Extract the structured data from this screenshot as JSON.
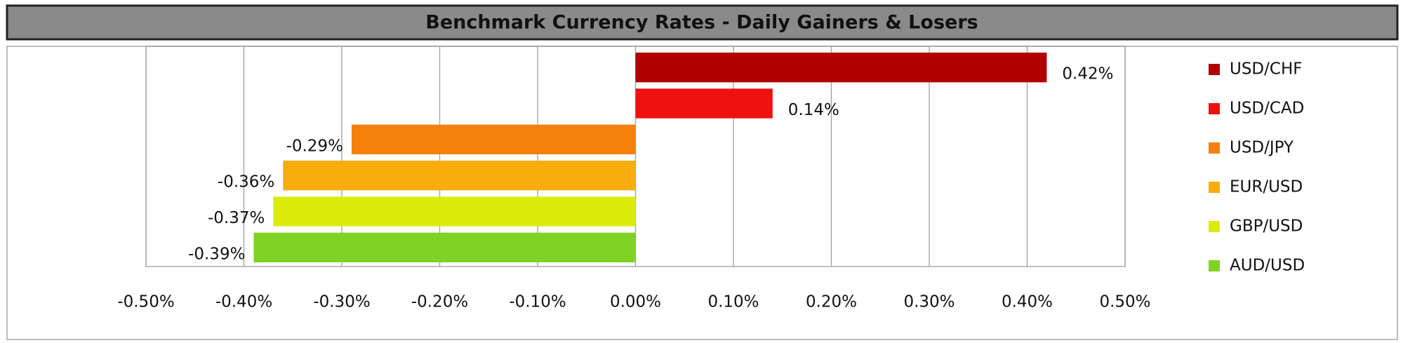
{
  "chart_data": {
    "type": "bar",
    "orientation": "horizontal",
    "title": "Benchmark Currency Rates - Daily Gainers & Losers",
    "categories": [
      "USD/CHF",
      "USD/CAD",
      "USD/JPY",
      "EUR/USD",
      "GBP/USD",
      "AUD/USD"
    ],
    "values": [
      0.42,
      0.14,
      -0.29,
      -0.36,
      -0.37,
      -0.39
    ],
    "value_labels": [
      "0.42%",
      "0.14%",
      "-0.29%",
      "-0.36%",
      "-0.37%",
      "-0.39%"
    ],
    "colors": [
      "#b00000",
      "#f01010",
      "#f5800a",
      "#f8ac0e",
      "#dcec0a",
      "#7fd324"
    ],
    "xlim": [
      -0.5,
      0.5
    ],
    "xticks": [
      {
        "value": -0.5,
        "label": "-0.50%"
      },
      {
        "value": -0.4,
        "label": "-0.40%"
      },
      {
        "value": -0.3,
        "label": "-0.30%"
      },
      {
        "value": -0.2,
        "label": "-0.20%"
      },
      {
        "value": -0.1,
        "label": "-0.10%"
      },
      {
        "value": 0,
        "label": "0.00%"
      },
      {
        "value": 0.1,
        "label": "0.10%"
      },
      {
        "value": 0.2,
        "label": "0.20%"
      },
      {
        "value": 0.3,
        "label": "0.30%"
      },
      {
        "value": 0.4,
        "label": "0.40%"
      },
      {
        "value": 0.5,
        "label": "0.50%"
      }
    ],
    "grid": true,
    "legend": "right"
  }
}
